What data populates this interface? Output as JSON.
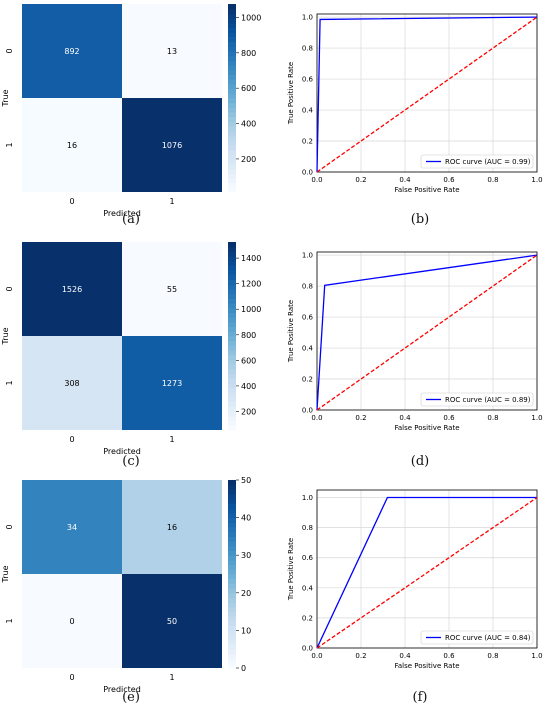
{
  "captions": [
    "(a)",
    "(b)",
    "(c)",
    "(d)",
    "(e)",
    "(f)"
  ],
  "chart_data": [
    {
      "type": "heatmap",
      "panel": "a",
      "matrix": [
        [
          892,
          13
        ],
        [
          16,
          1076
        ]
      ],
      "x_ticks": [
        "0",
        "1"
      ],
      "y_ticks": [
        "0",
        "1"
      ],
      "xlabel": "Predicted",
      "ylabel": "True",
      "colorbar_ticks": [
        200,
        400,
        600,
        800,
        1000
      ],
      "vmin": 13,
      "vmax": 1076,
      "colormap": "Blues"
    },
    {
      "type": "line",
      "panel": "b",
      "series": [
        {
          "name": "ROC curve (AUC = 0.99)",
          "x": [
            0,
            0.014,
            1
          ],
          "y": [
            0,
            0.985,
            1
          ],
          "color": "#0000ff"
        },
        {
          "x": [
            0,
            1
          ],
          "y": [
            0,
            1
          ],
          "color": "#ff0000",
          "dashed": true
        }
      ],
      "xlabel": "False Positive Rate",
      "ylabel": "True Positive Rate",
      "x_ticks": [
        "0.0",
        "0.2",
        "0.4",
        "0.6",
        "0.8",
        "1.0"
      ],
      "y_ticks": [
        "0.0",
        "0.2",
        "0.4",
        "0.6",
        "0.8",
        "1.0"
      ],
      "xlim": [
        0,
        1
      ],
      "ylim": [
        0,
        1.02
      ],
      "grid": true,
      "legend": "lower-right"
    },
    {
      "type": "heatmap",
      "panel": "c",
      "matrix": [
        [
          1526,
          55
        ],
        [
          308,
          1273
        ]
      ],
      "x_ticks": [
        "0",
        "1"
      ],
      "y_ticks": [
        "0",
        "1"
      ],
      "xlabel": "Predicted",
      "ylabel": "True",
      "colorbar_ticks": [
        200,
        400,
        600,
        800,
        1000,
        1200,
        1400
      ],
      "vmin": 55,
      "vmax": 1526,
      "colormap": "Blues"
    },
    {
      "type": "line",
      "panel": "d",
      "series": [
        {
          "name": "ROC curve (AUC = 0.89)",
          "x": [
            0,
            0.035,
            1
          ],
          "y": [
            0,
            0.805,
            1
          ],
          "color": "#0000ff"
        },
        {
          "x": [
            0,
            1
          ],
          "y": [
            0,
            1
          ],
          "color": "#ff0000",
          "dashed": true
        }
      ],
      "xlabel": "False Positive Rate",
      "ylabel": "True Positive Rate",
      "x_ticks": [
        "0.0",
        "0.2",
        "0.4",
        "0.6",
        "0.8",
        "1.0"
      ],
      "y_ticks": [
        "0.0",
        "0.2",
        "0.4",
        "0.6",
        "0.8",
        "1.0"
      ],
      "xlim": [
        0,
        1
      ],
      "ylim": [
        0,
        1.02
      ],
      "grid": true,
      "legend": "lower-right"
    },
    {
      "type": "heatmap",
      "panel": "e",
      "matrix": [
        [
          34,
          16
        ],
        [
          0,
          50
        ]
      ],
      "x_ticks": [
        "0",
        "1"
      ],
      "y_ticks": [
        "0",
        "1"
      ],
      "xlabel": "Predicted",
      "ylabel": "True",
      "colorbar_ticks": [
        0,
        10,
        20,
        30,
        40,
        50
      ],
      "vmin": 0,
      "vmax": 50,
      "colormap": "Blues"
    },
    {
      "type": "line",
      "panel": "f",
      "series": [
        {
          "name": "ROC curve (AUC = 0.84)",
          "x": [
            0,
            0.32,
            1
          ],
          "y": [
            0,
            1,
            1
          ],
          "color": "#0000ff"
        },
        {
          "x": [
            0,
            1
          ],
          "y": [
            0,
            1
          ],
          "color": "#ff0000",
          "dashed": true
        }
      ],
      "xlabel": "False Positive Rate",
      "ylabel": "True Positive Rate",
      "x_ticks": [
        "0.0",
        "0.2",
        "0.4",
        "0.6",
        "0.8",
        "1.0"
      ],
      "y_ticks": [
        "0.0",
        "0.2",
        "0.4",
        "0.6",
        "0.8",
        "1.0"
      ],
      "xlim": [
        0,
        1
      ],
      "ylim": [
        0,
        1.05
      ],
      "grid": true,
      "legend": "lower-right"
    }
  ]
}
